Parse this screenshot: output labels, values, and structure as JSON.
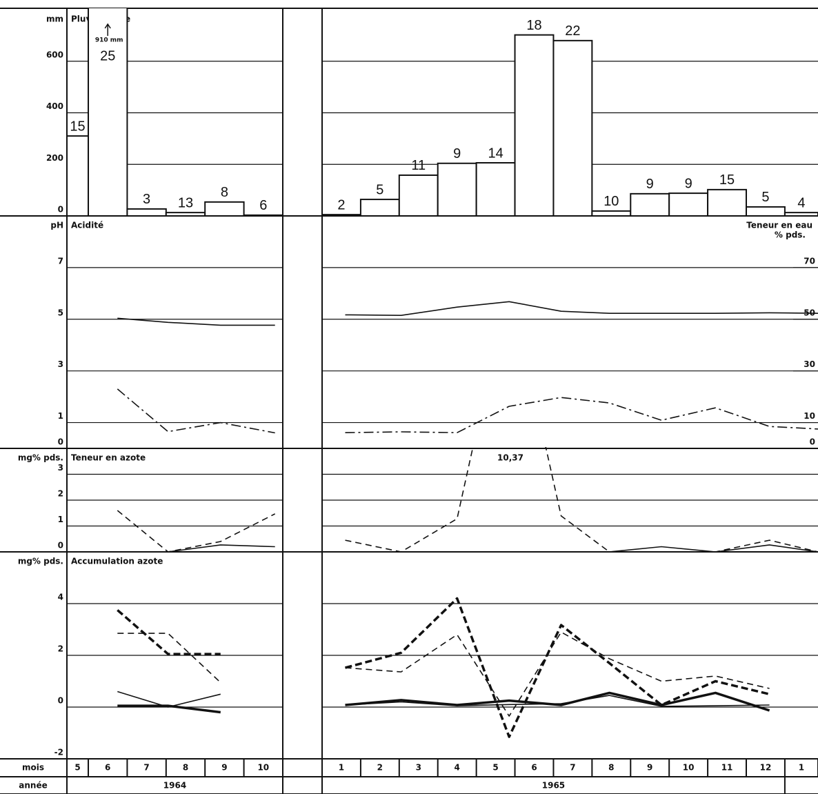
{
  "x_axis": {
    "month_label": "mois",
    "year_label": "année",
    "groups": [
      {
        "year": "1964",
        "months": [
          5,
          6,
          7,
          8,
          9,
          10
        ],
        "xlim": [
          4.45,
          10
        ],
        "x": [
          5.75,
          7.05,
          8.4,
          9.8
        ]
      },
      {
        "year": "1965",
        "months": [
          1,
          2,
          3,
          4,
          5,
          6,
          7,
          8,
          9,
          10,
          11,
          12,
          1
        ],
        "xlim": [
          0,
          12.86
        ],
        "x": [
          0.6,
          2.05,
          3.5,
          4.85,
          6.2,
          7.45,
          8.8,
          10.2,
          11.6,
          12.86
        ]
      }
    ]
  },
  "chart_data": [
    {
      "type": "bar",
      "ylabel": "mm",
      "title": "Pluviométrie",
      "ylim": [
        0,
        800
      ],
      "yticks": [
        0,
        200,
        400,
        600
      ],
      "values": [
        [
          310,
          910,
          27,
          13,
          54,
          3
        ],
        [
          5,
          64,
          158,
          204,
          206,
          702,
          680,
          19,
          86,
          88,
          102,
          35,
          13
        ]
      ],
      "days": [
        [
          15,
          25,
          3,
          13,
          8,
          6
        ],
        [
          2,
          5,
          11,
          9,
          14,
          18,
          22,
          10,
          9,
          9,
          15,
          5,
          4
        ]
      ],
      "annotation": "910 mm"
    },
    {
      "type": "line",
      "ylabel": "pH",
      "title": "Acidité",
      "ylim": [
        0,
        9
      ],
      "yticks": [
        0,
        1,
        3,
        5,
        7
      ],
      "y2label": [
        "Teneur en eau",
        "% pds."
      ],
      "y2lim": [
        0,
        90
      ],
      "y2ticks": [
        0,
        10,
        30,
        50,
        70
      ],
      "series": [
        {
          "style": "solid",
          "axis": "y",
          "values": [
            [
              5.04,
              4.88,
              4.77,
              4.77
            ],
            [
              5.17,
              5.15,
              5.47,
              5.68,
              5.31,
              5.23,
              5.23,
              5.23,
              5.25,
              5.23
            ]
          ]
        },
        {
          "style": "dashdot",
          "axis": "y2",
          "values": [
            [
              23,
              6.5,
              10,
              6
            ],
            [
              6.1,
              6.4,
              6.1,
              16.3,
              19.7,
              17.6,
              10.9,
              15.7,
              8.5,
              7.5
            ]
          ]
        }
      ]
    },
    {
      "type": "line",
      "ylabel": "mg% pds.",
      "title": "Teneur en azote",
      "ylim": [
        0,
        4
      ],
      "yticks": [
        0,
        1,
        2,
        3
      ],
      "annotation": "10,37",
      "series": [
        {
          "style": "dashed",
          "axis": "y",
          "values": [
            [
              1.6,
              0,
              0.4,
              1.47
            ],
            [
              0.45,
              0,
              1.28,
              10.37,
              1.39,
              0,
              0,
              0,
              0.45,
              0
            ]
          ]
        },
        {
          "style": "solid",
          "axis": "y",
          "values": [
            [
              null,
              0,
              0.27,
              0.2
            ],
            [
              null,
              null,
              null,
              null,
              null,
              0,
              0.2,
              0,
              0.27,
              0
            ]
          ]
        }
      ]
    },
    {
      "type": "line",
      "ylabel": "mg% pds.",
      "title": "Accumulation azote",
      "ylim": [
        -2,
        6
      ],
      "yticks": [
        -2,
        0,
        2,
        4
      ],
      "series": [
        {
          "style": "dashed-thick",
          "axis": "y",
          "values": [
            [
              3.75,
              2.05,
              2.05,
              null
            ],
            [
              1.52,
              2.1,
              4.2,
              -1.15,
              3.17,
              1.7,
              0.08,
              1.0,
              0.5,
              null
            ]
          ]
        },
        {
          "style": "dashed",
          "axis": "y",
          "values": [
            [
              2.85,
              2.85,
              0.95,
              null
            ],
            [
              1.52,
              1.36,
              2.8,
              -0.35,
              2.9,
              1.87,
              1.0,
              1.2,
              0.72,
              null
            ]
          ]
        },
        {
          "style": "solid-thick",
          "axis": "y",
          "values": [
            [
              0.05,
              0.05,
              -0.2,
              null
            ],
            [
              0.08,
              0.27,
              0.08,
              0.25,
              0.08,
              0.55,
              0.08,
              0.55,
              -0.13,
              null
            ]
          ]
        },
        {
          "style": "solid",
          "axis": "y",
          "values": [
            [
              0.6,
              0,
              0.5,
              null
            ],
            [
              0.08,
              0.2,
              0.05,
              0.1,
              0.13,
              0.45,
              0.03,
              0.05,
              0.08,
              null
            ]
          ]
        }
      ]
    }
  ]
}
